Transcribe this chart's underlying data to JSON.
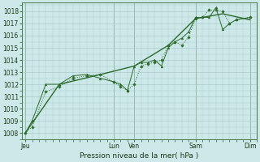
{
  "title": "Pression niveau de la mer( hPa )",
  "bg_color": "#cce8e8",
  "grid_color": "#aacccc",
  "line_color": "#2d6b2d",
  "ylim": [
    1007.5,
    1018.7
  ],
  "ylabel_ticks": [
    1008,
    1009,
    1010,
    1011,
    1012,
    1013,
    1014,
    1015,
    1016,
    1017,
    1018
  ],
  "x_tick_labels": [
    "Jeu",
    "Lun",
    "Ven",
    "Sam",
    "Dim"
  ],
  "x_tick_positions": [
    0,
    13,
    16,
    25,
    33
  ],
  "x_vlines": [
    0,
    13,
    16,
    25,
    33
  ],
  "xlim": [
    -0.5,
    34
  ],
  "series1_x": [
    0,
    1,
    3,
    5,
    7,
    9,
    11,
    13,
    14,
    15,
    16,
    17,
    18,
    19,
    20,
    21,
    22,
    23,
    24,
    25,
    26,
    27,
    28,
    29,
    30,
    31,
    33
  ],
  "series1_y": [
    1008.0,
    1008.5,
    1011.4,
    1011.8,
    1012.5,
    1012.7,
    1012.8,
    1012.2,
    1011.8,
    1011.5,
    1012.0,
    1013.5,
    1013.7,
    1013.8,
    1014.0,
    1015.2,
    1015.5,
    1015.2,
    1015.9,
    1017.4,
    1017.5,
    1018.1,
    1018.1,
    1018.0,
    1017.0,
    1017.3,
    1017.5
  ],
  "series2_x": [
    0,
    1,
    3,
    5,
    7,
    9,
    11,
    13,
    14,
    15,
    16,
    17,
    18,
    19,
    20,
    21,
    22,
    23,
    24,
    25,
    26,
    27,
    28,
    29,
    30,
    31,
    33
  ],
  "series2_y": [
    1008.0,
    1009.0,
    1012.0,
    1012.0,
    1012.7,
    1012.8,
    1012.5,
    1012.2,
    1012.0,
    1011.5,
    1013.5,
    1013.8,
    1013.8,
    1014.0,
    1013.5,
    1015.0,
    1015.5,
    1015.8,
    1016.3,
    1017.5,
    1017.5,
    1017.5,
    1018.3,
    1016.5,
    1017.0,
    1017.3,
    1017.5
  ],
  "series3_x": [
    0,
    5,
    11,
    16,
    21,
    25,
    29,
    33
  ],
  "series3_y": [
    1008.0,
    1012.0,
    1012.8,
    1013.5,
    1015.2,
    1017.4,
    1017.8,
    1017.3
  ]
}
